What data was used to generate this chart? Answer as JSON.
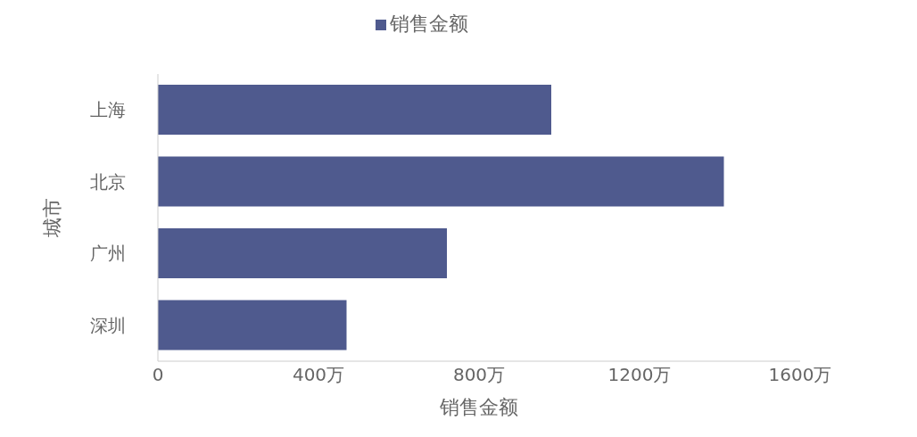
{
  "chart_data": {
    "type": "bar",
    "orientation": "horizontal",
    "categories": [
      "上海",
      "北京",
      "广州",
      "深圳"
    ],
    "series": [
      {
        "name": "销售金额",
        "color": "#4f5a8e",
        "values": [
          980,
          1410,
          720,
          470
        ]
      }
    ],
    "xlabel": "销售金额",
    "ylabel": "城市",
    "xlim": [
      0,
      1600
    ],
    "xticks": [
      0,
      {
        "value": 400,
        "label": "400万"
      },
      {
        "value": 800,
        "label": "800万"
      },
      {
        "value": 1200,
        "label": "1200万"
      },
      {
        "value": 1600,
        "label": "1600万"
      }
    ],
    "grid": false,
    "legend": "top"
  }
}
